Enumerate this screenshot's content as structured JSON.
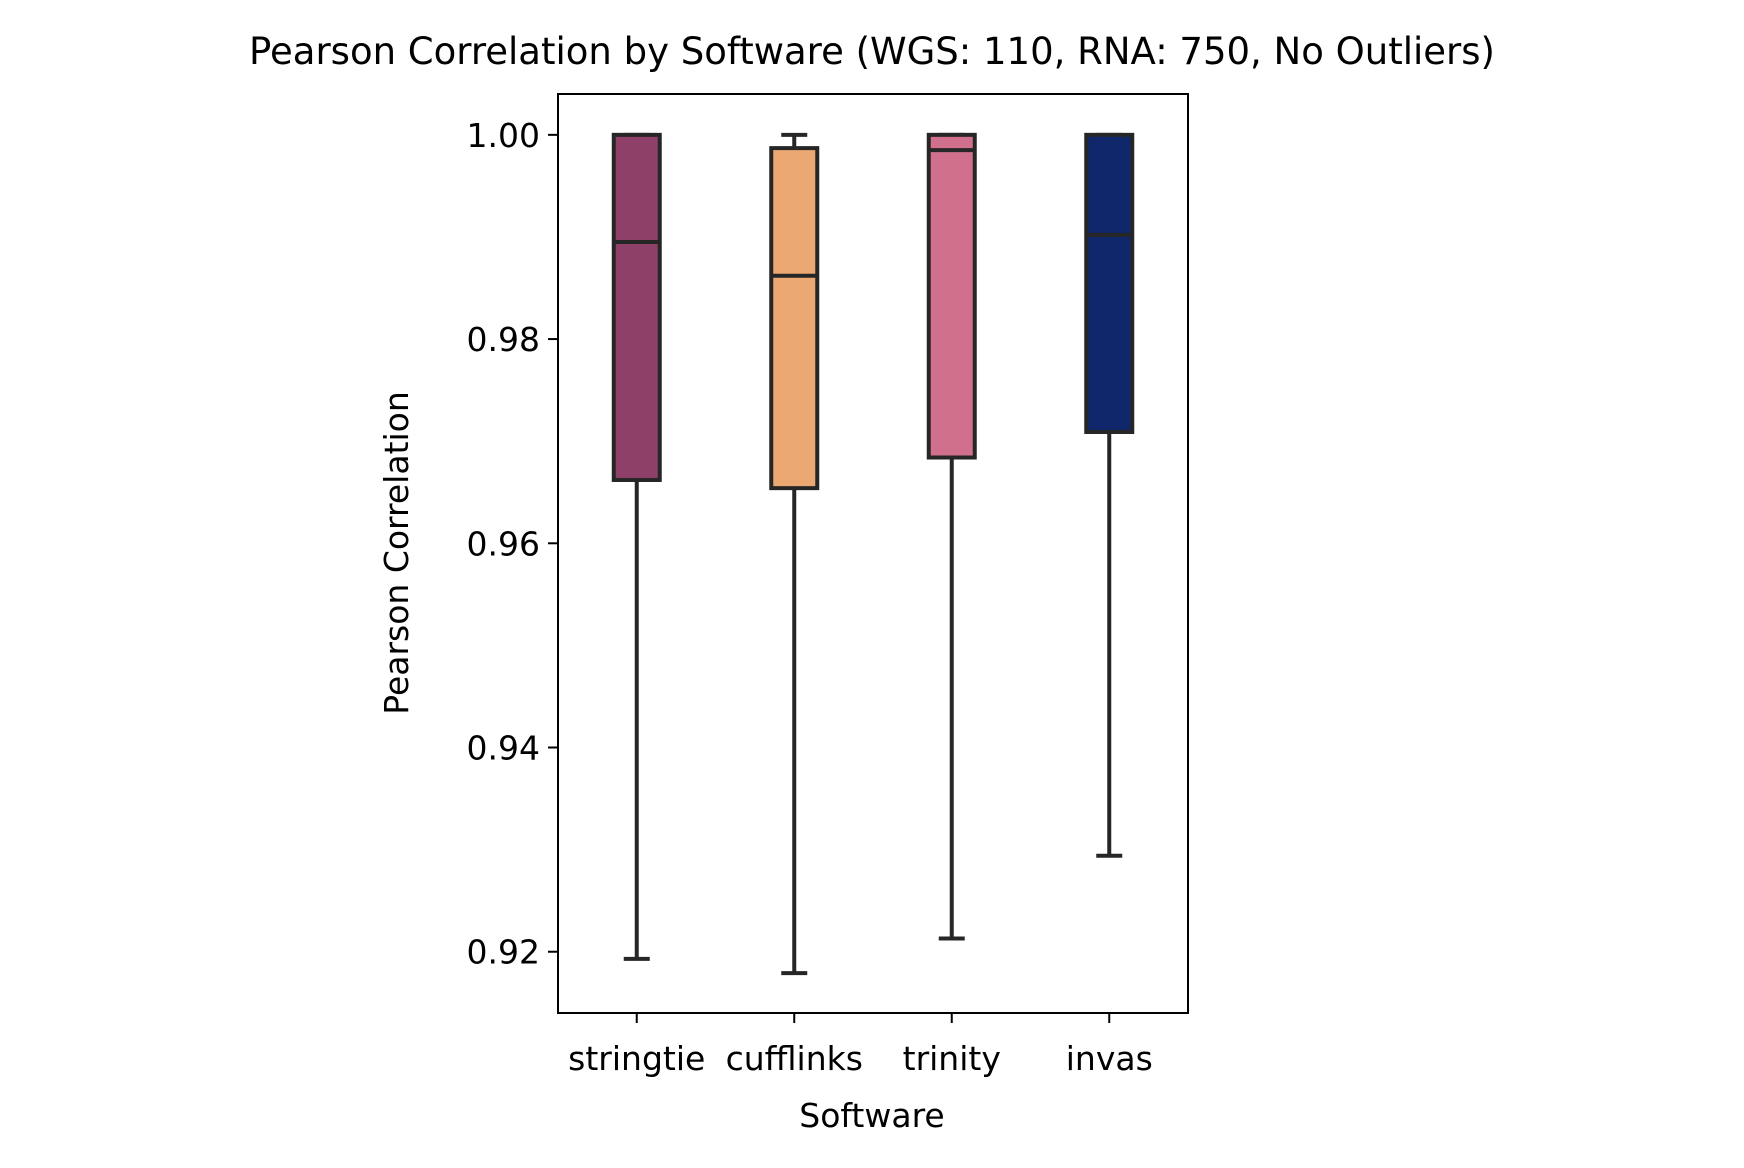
{
  "chart_data": {
    "type": "box",
    "title": "Pearson Correlation by Software (WGS: 110, RNA: 750, No Outliers)",
    "xlabel": "Software",
    "ylabel": "Pearson Correlation",
    "ylim": [
      0.914,
      1.004
    ],
    "yticks": [
      "0.92",
      "0.94",
      "0.96",
      "0.98",
      "1.00"
    ],
    "ytick_values": [
      0.92,
      0.94,
      0.96,
      0.98,
      1.0
    ],
    "grid": false,
    "legend": "none",
    "categories": [
      "stringtie",
      "cufflinks",
      "trinity",
      "invas"
    ],
    "boxes": [
      {
        "name": "stringtie",
        "color": "#8f4068",
        "whisker_low": 0.9193,
        "q1": 0.9662,
        "median": 0.9895,
        "q3": 1.0,
        "whisker_high": 1.0
      },
      {
        "name": "cufflinks",
        "color": "#eba872",
        "whisker_low": 0.9179,
        "q1": 0.9654,
        "median": 0.9862,
        "q3": 0.9987,
        "whisker_high": 1.0
      },
      {
        "name": "trinity",
        "color": "#d0708c",
        "whisker_low": 0.9213,
        "q1": 0.9684,
        "median": 0.9985,
        "q3": 1.0,
        "whisker_high": 1.0
      },
      {
        "name": "invas",
        "color": "#10276b",
        "whisker_low": 0.9294,
        "q1": 0.9709,
        "median": 0.9902,
        "q3": 1.0,
        "whisker_high": 1.0
      }
    ]
  }
}
